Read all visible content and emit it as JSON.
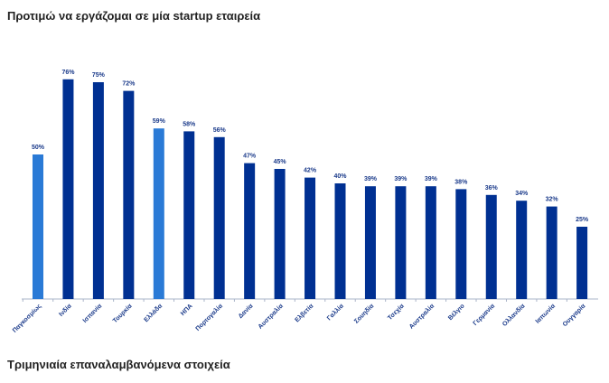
{
  "header": {
    "title": "Προτιμώ να εργάζομαι σε μία startup εταιρεία"
  },
  "footer": {
    "title": "Τριμηνιαία επαναλαμβανόμενα στοιχεία"
  },
  "chart_data": {
    "type": "bar",
    "title": "Προτιμώ να εργάζομαι σε μία startup εταιρεία",
    "categories": [
      "Παγκοσμίως",
      "Ινδία",
      "Ισπανία",
      "Τουρκία",
      "Ελλάδα",
      "ΗΠΑ",
      "Πορτογαλία",
      "Δανία",
      "Αυστραλία",
      "Ελβετία",
      "Γαλλία",
      "Σουηδία",
      "Τσεχία",
      "Αυστραλία",
      "Βέλγιο",
      "Γερμανία",
      "Ολλανδία",
      "Ιαπωνία",
      "Ουγγαρία"
    ],
    "values": [
      50,
      76,
      75,
      72,
      59,
      58,
      56,
      47,
      45,
      42,
      40,
      39,
      39,
      39,
      38,
      36,
      34,
      32,
      25
    ],
    "labels": [
      "50%",
      "76%",
      "75%",
      "72%",
      "59%",
      "58%",
      "56%",
      "47%",
      "45%",
      "42%",
      "40%",
      "39%",
      "39%",
      "39%",
      "38%",
      "36%",
      "34%",
      "32%",
      "25%"
    ],
    "highlight": [
      "Παγκοσμίως",
      "Ελλάδα"
    ],
    "colors": {
      "default": "#003092",
      "highlight": "#2a7ad6",
      "axis": "#aab4c8"
    },
    "ylim": [
      0,
      80
    ],
    "xlabel": "",
    "ylabel": ""
  }
}
